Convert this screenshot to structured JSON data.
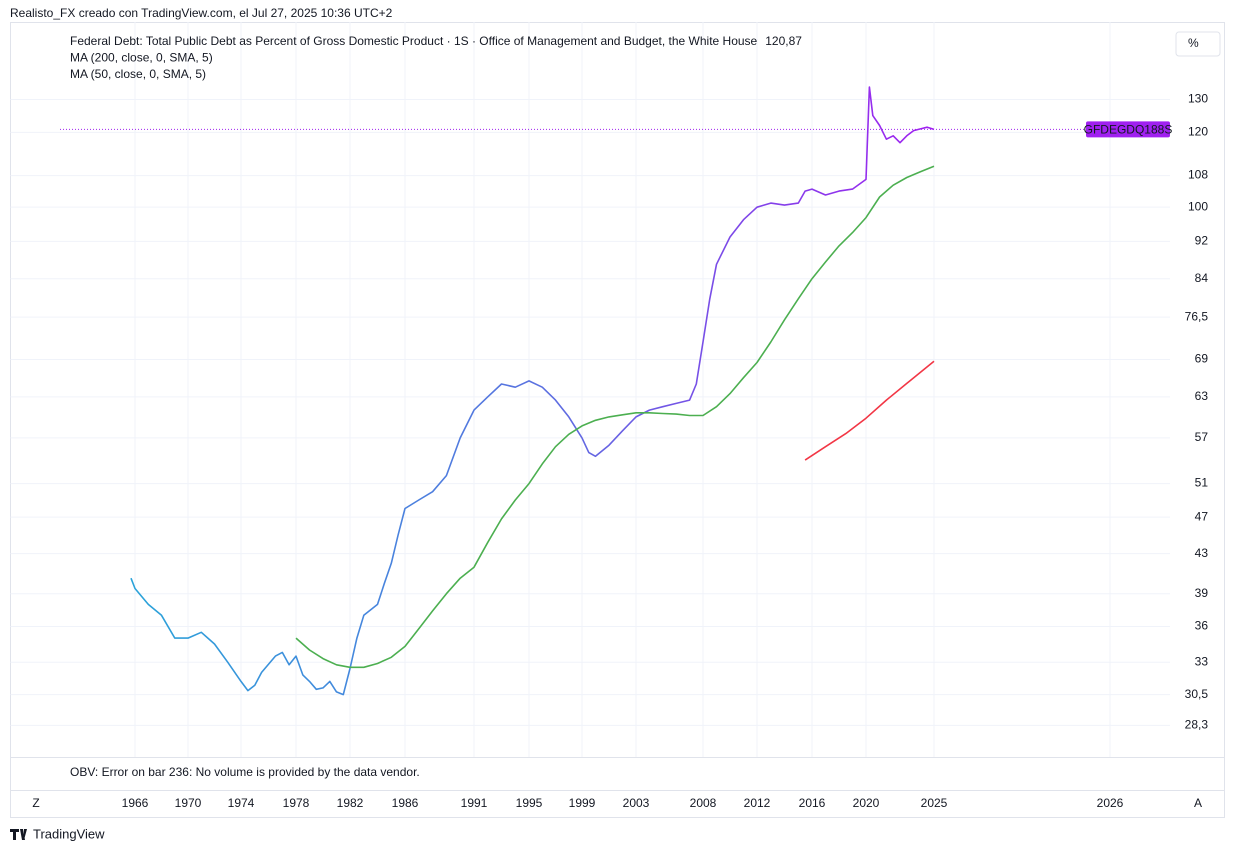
{
  "header": {
    "credit": "Realisto_FX creado con TradingView.com, el Jul 27, 2025 10:36 UTC+2"
  },
  "chart_data": {
    "type": "line",
    "log_scale": true,
    "grid": true,
    "unit_button": "%",
    "price_label": "GFDEGDQ188S",
    "series": [
      {
        "name": "Federal Debt: Total Public Debt as Percent of Gross Domestic Product · 1S · Office of Management and Budget, the White House",
        "colors": [
          "#2aa3d9",
          "#5a72e0",
          "#a020f0"
        ],
        "last_label": "120,87",
        "x": [
          1965.7,
          1966,
          1967,
          1968,
          1969,
          1970,
          1971,
          1972,
          1973,
          1974,
          1974.5,
          1975,
          1975.5,
          1976.5,
          1977,
          1977.5,
          1978,
          1978.5,
          1979,
          1979.5,
          1980,
          1980.5,
          1981,
          1981.5,
          1982,
          1982.5,
          1983,
          1984,
          1984.5,
          1985,
          1985.5,
          1986,
          1987,
          1988,
          1989,
          1990,
          1991,
          1992,
          1993,
          1994,
          1995,
          1996,
          1997,
          1998,
          1999,
          1999.5,
          2000,
          2001,
          2002,
          2003,
          2004,
          2005,
          2006,
          2007,
          2007.5,
          2008,
          2008.5,
          2009,
          2010,
          2011,
          2012,
          2013,
          2014,
          2015,
          2015.5,
          2016,
          2017,
          2018,
          2019,
          2020,
          2020.25,
          2020.5,
          2021,
          2021.5,
          2022,
          2022.5,
          2023,
          2023.5,
          2024,
          2024.5,
          2025
        ],
        "values": [
          40.5,
          39.5,
          38,
          37,
          35,
          35,
          35.5,
          34.5,
          33,
          31.5,
          30.8,
          31.2,
          32.2,
          33.5,
          33.8,
          32.8,
          33.5,
          32,
          31.5,
          30.9,
          31,
          31.5,
          30.7,
          30.5,
          32.5,
          35,
          37,
          38,
          40,
          42,
          45,
          48,
          49,
          50,
          52,
          57,
          61,
          63,
          65,
          64.5,
          65.5,
          64.5,
          62.5,
          60,
          57,
          55,
          54.5,
          56,
          58,
          60,
          61,
          61.5,
          62,
          62.5,
          65,
          72,
          80,
          87,
          93,
          97,
          100,
          101,
          100.5,
          101,
          104,
          104.5,
          103,
          104,
          104.5,
          107,
          134,
          125,
          122,
          118,
          119,
          117,
          119,
          120.5,
          121,
          121.5,
          120.87
        ]
      },
      {
        "name": "MA (200, close, 0, SMA, 5)",
        "color": "#f23645",
        "x": [
          2015.5,
          2017,
          2018.5,
          2020,
          2021.5,
          2023,
          2025
        ],
        "values": [
          54,
          55.8,
          57.6,
          59.8,
          62.5,
          65.1,
          68.7
        ]
      },
      {
        "name": "MA (50, close, 0, SMA, 5)",
        "color": "#4caf50",
        "x": [
          1978,
          1979,
          1980,
          1981,
          1982,
          1983,
          1984,
          1985,
          1986,
          1987,
          1988,
          1989,
          1990,
          1991,
          1992,
          1993,
          1994,
          1995,
          1996,
          1997,
          1998,
          1999,
          2000,
          2001,
          2002,
          2003,
          2004,
          2005,
          2006,
          2007,
          2008,
          2009,
          2010,
          2011,
          2012,
          2013,
          2014,
          2015,
          2016,
          2017,
          2018,
          2019,
          2020,
          2021,
          2022,
          2023,
          2024,
          2025
        ],
        "values": [
          35,
          34,
          33.3,
          32.8,
          32.6,
          32.6,
          32.9,
          33.4,
          34.3,
          35.8,
          37.4,
          39,
          40.5,
          41.6,
          44.2,
          46.8,
          49,
          51,
          53.5,
          55.8,
          57.5,
          58.7,
          59.5,
          60,
          60.3,
          60.6,
          60.6,
          60.5,
          60.4,
          60.2,
          60.2,
          61.5,
          63.5,
          66,
          68.5,
          72,
          76,
          80,
          84,
          87.5,
          91,
          94,
          97.5,
          102.5,
          105.5,
          107.5,
          109,
          110.5
        ]
      }
    ],
    "xlim": [
      1956.6,
      2026.65
    ],
    "xticks": [
      1966,
      1970,
      1974,
      1978,
      1982,
      1986,
      1991,
      1995,
      1999,
      2003,
      2008,
      2012,
      2016,
      2020,
      2025,
      2026
    ],
    "ylim": [
      26.2,
      157
    ],
    "yticks": [
      130,
      120,
      108,
      100,
      92,
      84,
      {
        "value": 76.5,
        "label": "76,5"
      },
      69,
      63,
      57,
      51,
      47,
      43,
      39,
      36,
      33,
      {
        "value": 30.5,
        "label": "30,5"
      },
      {
        "value": 28.3,
        "label": "28,3"
      }
    ],
    "indicator_note": "OBV: Error on bar 236: No volume is provided by the data vendor.",
    "scale_left_button": "Z",
    "scale_right_button": "A"
  },
  "footer": {
    "logo": "TradingView"
  }
}
